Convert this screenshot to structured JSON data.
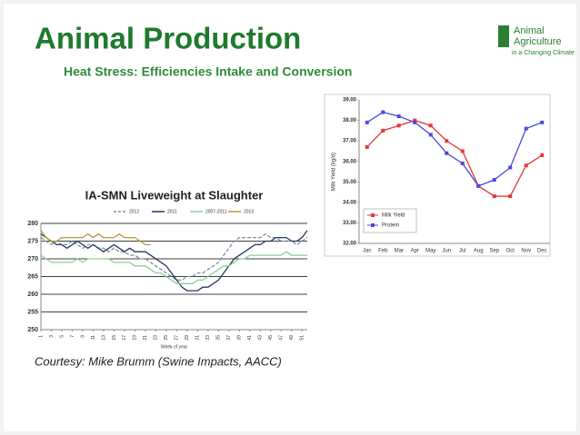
{
  "slide": {
    "title": "Animal Production",
    "subtitle": "Heat Stress: Efficiencies Intake and Conversion",
    "courtesy": "Courtesy: Mike Brumm (Swine Impacts, AACC)",
    "logo": [
      "Animal",
      "Agriculture",
      "in a Changing Climate"
    ]
  },
  "chart_data": [
    {
      "type": "line",
      "title": "IA-SMN Liveweight at Slaughter",
      "x_label": "Week of year",
      "x": [
        1,
        2,
        3,
        4,
        5,
        6,
        7,
        8,
        9,
        10,
        11,
        12,
        13,
        14,
        15,
        16,
        17,
        18,
        19,
        20,
        21,
        22,
        23,
        24,
        25,
        26,
        27,
        28,
        29,
        30,
        31,
        32,
        33,
        34,
        35,
        36,
        37,
        38,
        39,
        40,
        41,
        42,
        43,
        44,
        45,
        46,
        47,
        48,
        49,
        50,
        51,
        52
      ],
      "xlim": [
        1,
        52
      ],
      "xticks": [
        1,
        3,
        5,
        7,
        9,
        11,
        13,
        15,
        17,
        19,
        21,
        23,
        25,
        27,
        29,
        31,
        33,
        35,
        37,
        39,
        41,
        43,
        45,
        47,
        49,
        51
      ],
      "ylim": [
        250,
        280
      ],
      "yticks": [
        250,
        255,
        260,
        265,
        270,
        275,
        280
      ],
      "grid": true,
      "series": [
        {
          "name": "2012",
          "color": "#7f8ea6",
          "line_style": "dashed",
          "values": [
            276,
            275,
            274,
            275,
            274,
            274,
            275,
            274,
            273,
            274,
            274,
            273,
            273,
            272,
            273,
            272,
            272,
            271,
            271,
            270,
            270,
            269,
            268,
            267,
            266,
            265,
            264,
            264,
            265,
            265,
            266,
            266,
            267,
            268,
            269,
            271,
            273,
            275,
            276,
            276,
            276,
            276,
            276,
            277,
            276,
            276,
            275,
            275,
            275,
            274,
            275,
            276
          ]
        },
        {
          "name": "2011",
          "color": "#27385c",
          "line_style": "solid",
          "values": [
            277,
            276,
            275,
            274,
            274,
            273,
            274,
            275,
            274,
            273,
            274,
            273,
            272,
            273,
            274,
            273,
            272,
            273,
            272,
            272,
            272,
            271,
            270,
            269,
            268,
            266,
            264,
            262,
            261,
            261,
            261,
            262,
            262,
            263,
            264,
            266,
            268,
            270,
            271,
            272,
            273,
            274,
            274,
            275,
            275,
            276,
            276,
            276,
            275,
            275,
            276,
            278
          ]
        },
        {
          "name": "2007-2011",
          "color": "#8fcf9a",
          "line_style": "solid",
          "values": [
            271,
            270,
            269,
            269,
            269,
            269,
            269,
            270,
            269,
            270,
            270,
            270,
            270,
            270,
            269,
            269,
            269,
            269,
            268,
            268,
            268,
            267,
            266,
            266,
            265,
            264,
            263,
            263,
            263,
            263,
            264,
            264,
            265,
            266,
            267,
            268,
            268,
            269,
            270,
            270,
            271,
            271,
            271,
            271,
            271,
            271,
            271,
            272,
            271,
            271,
            271,
            271
          ]
        },
        {
          "name": "2013",
          "color": "#b89a3a",
          "line_style": "solid",
          "values": [
            278,
            276,
            275,
            275,
            276,
            276,
            276,
            276,
            276,
            277,
            276,
            277,
            276,
            276,
            276,
            277,
            276,
            276,
            276,
            275,
            274,
            274,
            null,
            null,
            null,
            null,
            null,
            null,
            null,
            null,
            null,
            null,
            null,
            null,
            null,
            null,
            null,
            null,
            null,
            null,
            null,
            null,
            null,
            null,
            null,
            null,
            null,
            null,
            null,
            null,
            null,
            null
          ]
        }
      ]
    },
    {
      "type": "line",
      "y_label": "Milk Yield (kg/d)",
      "categories": [
        "Jan",
        "Feb",
        "Mar",
        "Apr",
        "May",
        "Jun",
        "Jul",
        "Aug",
        "Sep",
        "Oct",
        "Nov",
        "Dec"
      ],
      "ylim": [
        32,
        39
      ],
      "yticks": [
        {
          "value": 32,
          "label": "32.00"
        },
        {
          "value": 33,
          "label": "33.00"
        },
        {
          "value": 34,
          "label": "34.00"
        },
        {
          "value": 35,
          "label": "35.00"
        },
        {
          "value": 36,
          "label": "36.00"
        },
        {
          "value": 37,
          "label": "37.00"
        },
        {
          "value": 38,
          "label": "38.00"
        },
        {
          "value": 39,
          "label": "39.00"
        }
      ],
      "grid": false,
      "markers": true,
      "series": [
        {
          "name": "Milk Yield",
          "color": "#e8363c",
          "line_style": "solid",
          "values": [
            36.7,
            37.5,
            37.75,
            38.0,
            37.75,
            37.0,
            36.5,
            34.8,
            34.3,
            34.3,
            35.8,
            36.3
          ]
        },
        {
          "name": "Protein",
          "color": "#4a4ad8",
          "line_style": "solid",
          "values": [
            37.9,
            38.4,
            38.2,
            37.9,
            37.3,
            36.4,
            35.9,
            34.8,
            35.1,
            35.7,
            37.6,
            37.9
          ]
        }
      ]
    }
  ]
}
